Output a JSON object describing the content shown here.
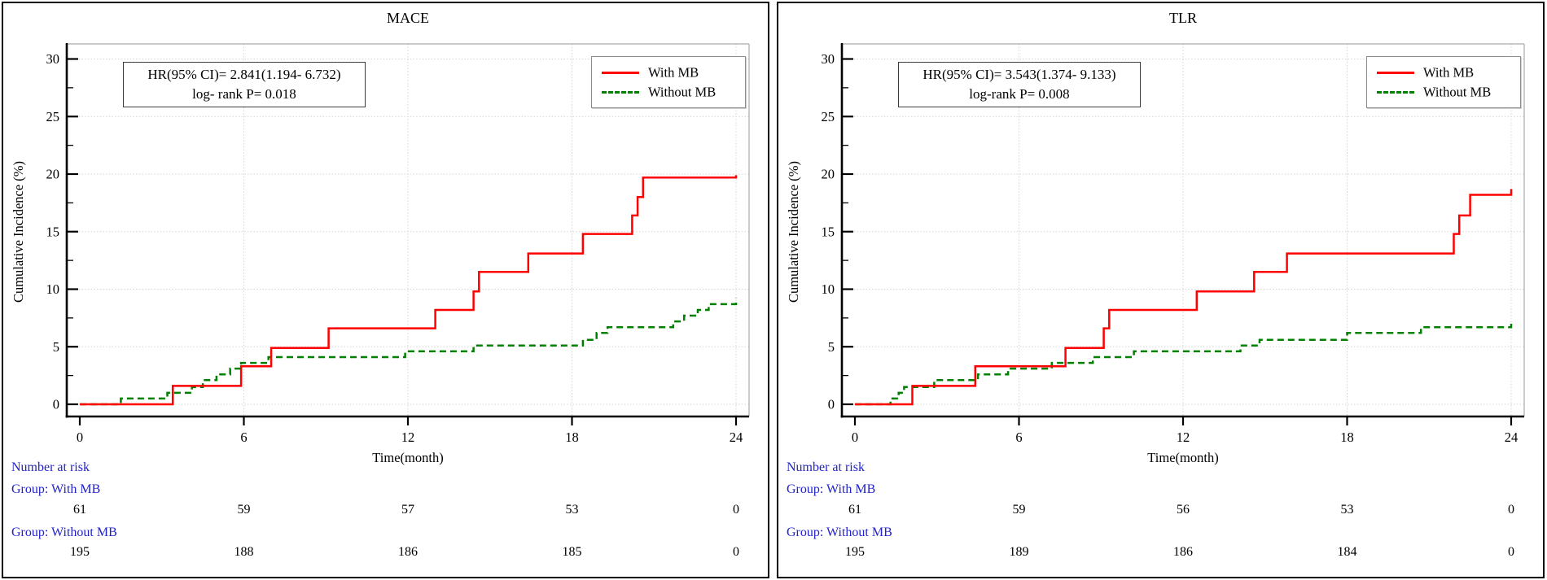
{
  "colors": {
    "with_mb": "#FF0000",
    "without_mb": "#008000",
    "risk_text": "#2222CC",
    "grid": "#D4D4D4",
    "frame": "#ABABAB",
    "axis": "#000000"
  },
  "chart_data": [
    {
      "type": "line",
      "step": "after",
      "title": "MACE",
      "xlabel": "Time(month)",
      "ylabel": "Cumulative Incidence (%)",
      "xlim": [
        0,
        24
      ],
      "ylim": [
        0,
        30
      ],
      "xticks": [
        0,
        6,
        12,
        18,
        24
      ],
      "yticks": [
        0,
        5,
        10,
        15,
        20,
        25,
        30
      ],
      "grid": true,
      "legend_position": "top-right",
      "annotation": {
        "hr_line": "HR(95% CI)= 2.841(1.194- 6.732)",
        "p_line": "log- rank P= 0.018"
      },
      "series": [
        {
          "name": "With MB",
          "color": "#FF0000",
          "dash": "solid",
          "step_points": [
            [
              0,
              0
            ],
            [
              3.4,
              1.6
            ],
            [
              5.9,
              3.3
            ],
            [
              7.0,
              4.9
            ],
            [
              9.1,
              6.6
            ],
            [
              13.0,
              8.2
            ],
            [
              14.4,
              9.8
            ],
            [
              14.6,
              11.5
            ],
            [
              16.4,
              13.1
            ],
            [
              18.4,
              14.8
            ],
            [
              20.2,
              16.4
            ],
            [
              20.4,
              18.0
            ],
            [
              20.6,
              19.7
            ],
            [
              24,
              19.9
            ]
          ]
        },
        {
          "name": "Without MB",
          "color": "#008000",
          "dash": "dashed",
          "step_points": [
            [
              0,
              0
            ],
            [
              1.5,
              0.5
            ],
            [
              3.2,
              1.0
            ],
            [
              4.1,
              1.5
            ],
            [
              4.5,
              2.1
            ],
            [
              5.0,
              2.6
            ],
            [
              5.5,
              3.1
            ],
            [
              5.9,
              3.6
            ],
            [
              6.9,
              4.1
            ],
            [
              11.9,
              4.6
            ],
            [
              14.4,
              5.1
            ],
            [
              18.4,
              5.6
            ],
            [
              18.9,
              6.2
            ],
            [
              19.3,
              6.7
            ],
            [
              21.7,
              7.2
            ],
            [
              22.1,
              7.7
            ],
            [
              22.6,
              8.2
            ],
            [
              23.0,
              8.7
            ],
            [
              24,
              9.2
            ]
          ]
        }
      ],
      "number_at_risk": {
        "heading": "Number at risk",
        "time_points": [
          0,
          6,
          12,
          18,
          24
        ],
        "groups": [
          {
            "label": "Group: With MB",
            "counts": [
              61,
              59,
              57,
              53,
              0
            ]
          },
          {
            "label": "Group: Without MB",
            "counts": [
              195,
              188,
              186,
              185,
              0
            ]
          }
        ]
      }
    },
    {
      "type": "line",
      "step": "after",
      "title": "TLR",
      "xlabel": "Time(month)",
      "ylabel": "Cumulative Incidence (%)",
      "xlim": [
        0,
        24
      ],
      "ylim": [
        0,
        30
      ],
      "xticks": [
        0,
        6,
        12,
        18,
        24
      ],
      "yticks": [
        0,
        5,
        10,
        15,
        20,
        25,
        30
      ],
      "grid": true,
      "legend_position": "top-right",
      "annotation": {
        "hr_line": "HR(95% CI)= 3.543(1.374- 9.133)",
        "p_line": "log-rank P= 0.008"
      },
      "series": [
        {
          "name": "With MB",
          "color": "#FF0000",
          "dash": "solid",
          "step_points": [
            [
              0,
              0
            ],
            [
              2.1,
              1.6
            ],
            [
              4.4,
              3.3
            ],
            [
              7.7,
              4.9
            ],
            [
              9.1,
              6.6
            ],
            [
              9.3,
              8.2
            ],
            [
              12.5,
              9.8
            ],
            [
              14.6,
              11.5
            ],
            [
              15.8,
              13.1
            ],
            [
              21.9,
              14.8
            ],
            [
              22.1,
              16.4
            ],
            [
              22.5,
              18.2
            ],
            [
              24,
              18.7
            ]
          ]
        },
        {
          "name": "Without MB",
          "color": "#008000",
          "dash": "dashed",
          "step_points": [
            [
              0,
              0
            ],
            [
              1.3,
              0.5
            ],
            [
              1.6,
              1.0
            ],
            [
              1.8,
              1.5
            ],
            [
              2.9,
              2.1
            ],
            [
              4.5,
              2.6
            ],
            [
              5.6,
              3.1
            ],
            [
              7.2,
              3.6
            ],
            [
              8.7,
              4.1
            ],
            [
              10.2,
              4.6
            ],
            [
              14.1,
              5.1
            ],
            [
              14.8,
              5.6
            ],
            [
              18.0,
              6.2
            ],
            [
              20.7,
              6.7
            ],
            [
              24,
              7.0
            ]
          ]
        }
      ],
      "number_at_risk": {
        "heading": "Number at risk",
        "time_points": [
          0,
          6,
          12,
          18,
          24
        ],
        "groups": [
          {
            "label": "Group: With MB",
            "counts": [
              61,
              59,
              56,
              53,
              0
            ]
          },
          {
            "label": "Group: Without MB",
            "counts": [
              195,
              189,
              186,
              184,
              0
            ]
          }
        ]
      }
    }
  ]
}
